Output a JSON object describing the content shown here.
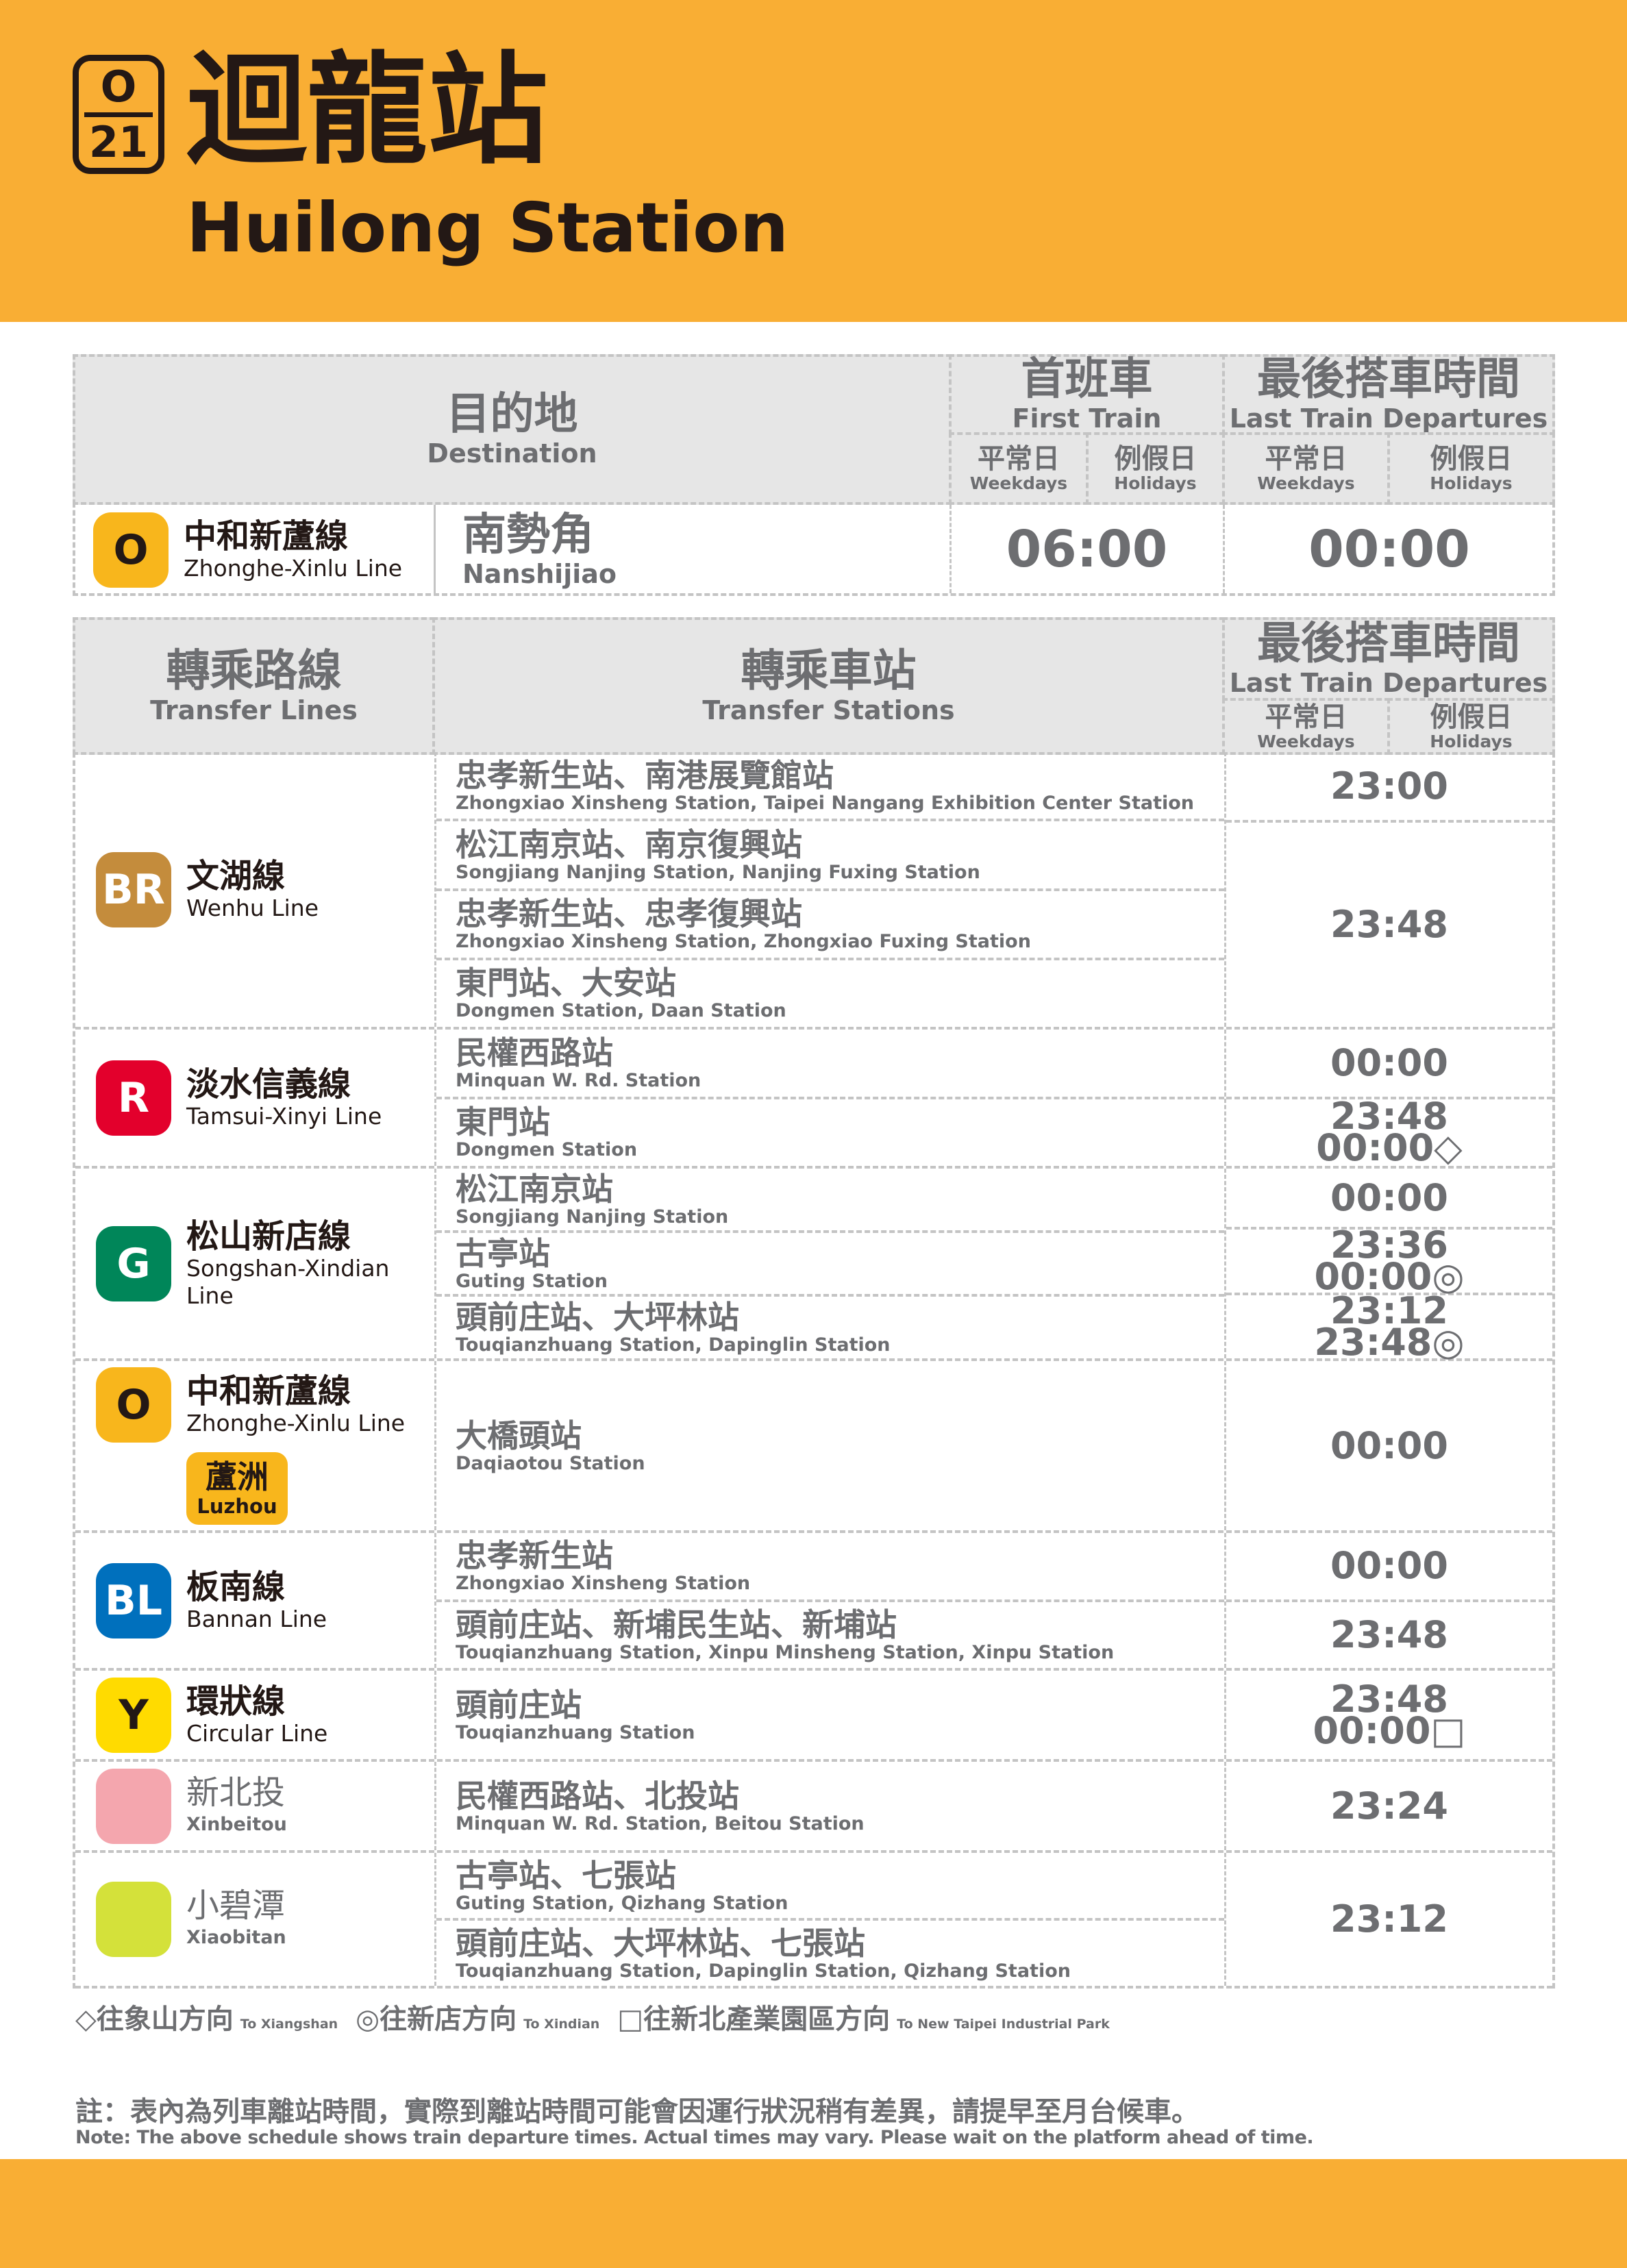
{
  "header": {
    "station_code_line": "O",
    "station_code_number": "21",
    "title_zh": "迴龍站",
    "title_en": "Huilong Station"
  },
  "first_table": {
    "destination_zh": "目的地",
    "destination_en": "Destination",
    "first_train_zh": "首班車",
    "first_train_en": "First Train",
    "last_train_zh": "最後搭車時間",
    "last_train_en": "Last Train Departures",
    "weekdays_zh": "平常日",
    "weekdays_en": "Weekdays",
    "holidays_zh": "例假日",
    "holidays_en": "Holidays",
    "row": {
      "badge": "O",
      "badge_color": "#f8b61c",
      "line_zh": "中和新蘆線",
      "line_en": "Zhonghe-Xinlu Line",
      "dest_zh": "南勢角",
      "dest_en": "Nanshijiao",
      "first_train": "06:00",
      "last_train": "00:00"
    }
  },
  "transfer_table": {
    "lines_zh": "轉乘路線",
    "lines_en": "Transfer Lines",
    "stations_zh": "轉乘車站",
    "stations_en": "Transfer Stations",
    "last_train_zh": "最後搭車時間",
    "last_train_en": "Last Train Departures",
    "weekdays_zh": "平常日",
    "weekdays_en": "Weekdays",
    "holidays_zh": "例假日",
    "holidays_en": "Holidays",
    "groups": [
      {
        "badge": "BR",
        "color": "#c48c3c",
        "text_color": "#ffffff",
        "line_zh": "文湖線",
        "line_en": "Wenhu Line",
        "stations": [
          {
            "zh": "忠孝新生站、南港展覽館站",
            "en": "Zhongxiao Xinsheng Station, Taipei Nangang Exhibition Center Station"
          },
          {
            "zh": "松江南京站、南京復興站",
            "en": "Songjiang Nanjing Station, Nanjing Fuxing Station"
          },
          {
            "zh": "忠孝新生站、忠孝復興站",
            "en": "Zhongxiao Xinsheng Station, Zhongxiao Fuxing Station"
          },
          {
            "zh": "東門站、大安站",
            "en": "Dongmen Station, Daan Station"
          }
        ],
        "times": [
          {
            "span": 1,
            "lines": [
              "23:00"
            ]
          },
          {
            "span": 3,
            "lines": [
              "23:48"
            ]
          }
        ]
      },
      {
        "badge": "R",
        "color": "#e3002c",
        "text_color": "#ffffff",
        "line_zh": "淡水信義線",
        "line_en": "Tamsui-Xinyi Line",
        "stations": [
          {
            "zh": "民權西路站",
            "en": "Minquan W. Rd. Station"
          },
          {
            "zh": "東門站",
            "en": "Dongmen Station"
          }
        ],
        "times": [
          {
            "span": 1,
            "lines": [
              "00:00"
            ]
          },
          {
            "span": 1,
            "lines": [
              "23:48",
              "00:00◇"
            ]
          }
        ]
      },
      {
        "badge": "G",
        "color": "#008659",
        "text_color": "#ffffff",
        "line_zh": "松山新店線",
        "line_en": "Songshan-Xindian Line",
        "stations": [
          {
            "zh": "松江南京站",
            "en": "Songjiang Nanjing Station"
          },
          {
            "zh": "古亭站",
            "en": "Guting Station"
          },
          {
            "zh": "頭前庄站、大坪林站",
            "en": "Touqianzhuang Station, Dapinglin Station"
          }
        ],
        "times": [
          {
            "span": 1,
            "lines": [
              "00:00"
            ]
          },
          {
            "span": 1,
            "lines": [
              "23:36",
              "00:00◎"
            ]
          },
          {
            "span": 1,
            "lines": [
              "23:12",
              "23:48◎"
            ]
          }
        ]
      },
      {
        "badge": "O",
        "color": "#f8b61c",
        "text_color": "#231815",
        "line_zh": "中和新蘆線",
        "line_en": "Zhonghe-Xinlu Line",
        "branch_zh": "蘆洲",
        "branch_en": "Luzhou",
        "stations": [
          {
            "zh": "大橋頭站",
            "en": "Daqiaotou Station"
          }
        ],
        "times": [
          {
            "span": 1,
            "lines": [
              "00:00"
            ]
          }
        ]
      },
      {
        "badge": "BL",
        "color": "#0070bd",
        "text_color": "#ffffff",
        "line_zh": "板南線",
        "line_en": "Bannan Line",
        "stations": [
          {
            "zh": "忠孝新生站",
            "en": "Zhongxiao Xinsheng Station"
          },
          {
            "zh": "頭前庄站、新埔民生站、新埔站",
            "en": "Touqianzhuang Station, Xinpu Minsheng Station, Xinpu Station"
          }
        ],
        "times": [
          {
            "span": 1,
            "lines": [
              "00:00"
            ]
          },
          {
            "span": 1,
            "lines": [
              "23:48"
            ]
          }
        ]
      },
      {
        "badge": "Y",
        "color": "#ffdb00",
        "text_color": "#231815",
        "line_zh": "環狀線",
        "line_en": "Circular Line",
        "stations": [
          {
            "zh": "頭前庄站",
            "en": "Touqianzhuang Station"
          }
        ],
        "times": [
          {
            "span": 1,
            "lines": [
              "23:48",
              "00:00□"
            ]
          }
        ]
      },
      {
        "badge": "",
        "color": "#f4a6ae",
        "text_color": "#6d6e71",
        "line_zh": "新北投",
        "line_en": "Xinbeitou",
        "stations": [
          {
            "zh": "民權西路站、北投站",
            "en": "Minquan W. Rd. Station, Beitou Station"
          }
        ],
        "times": [
          {
            "span": 1,
            "lines": [
              "23:24"
            ]
          }
        ]
      },
      {
        "badge": "",
        "color": "#d4e13a",
        "text_color": "#6d6e71",
        "line_zh": "小碧潭",
        "line_en": "Xiaobitan",
        "stations": [
          {
            "zh": "古亭站、七張站",
            "en": "Guting Station, Qizhang Station"
          },
          {
            "zh": "頭前庄站、大坪林站、七張站",
            "en": "Touqianzhuang Station, Dapinglin Station, Qizhang Station"
          }
        ],
        "times": [
          {
            "span": 2,
            "lines": [
              "23:12"
            ]
          }
        ]
      }
    ]
  },
  "legend": [
    {
      "zh": "◇往象山方向",
      "en": "To Xiangshan"
    },
    {
      "zh": "◎往新店方向",
      "en": "To Xindian"
    },
    {
      "zh": "□往新北產業園區方向",
      "en": "To New Taipei Industrial Park"
    }
  ],
  "note": {
    "zh": "註：表內為列車離站時間，實際到離站時間可能會因運行狀況稍有差異，請提早至月台候車。",
    "en": "Note: The above schedule shows train departure times. Actual times may vary. Please wait on the platform ahead of time."
  }
}
